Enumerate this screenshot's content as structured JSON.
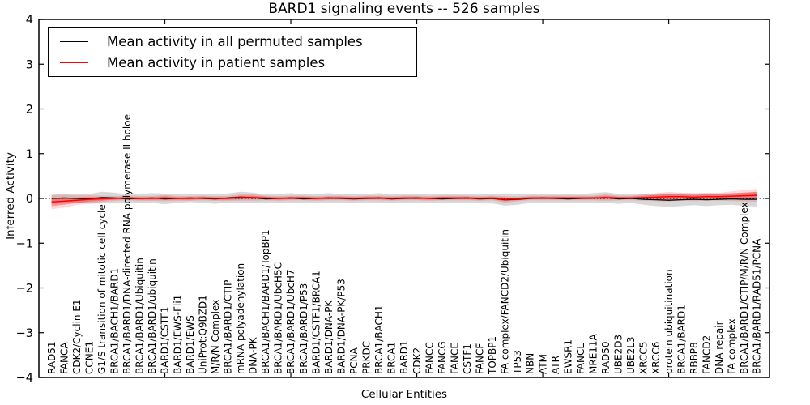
{
  "figure": {
    "title": "BARD1 signaling events -- 526 samples",
    "xlabel": "Cellular Entities",
    "ylabel": "Inferred Activity"
  },
  "legend": {
    "items": [
      {
        "label": "Mean activity in all permuted samples",
        "color": "#000000"
      },
      {
        "label": "Mean activity in patient samples",
        "color": "#ff0000"
      }
    ]
  },
  "chart_data": {
    "type": "line",
    "title": "BARD1 signaling events -- 526 samples",
    "xlabel": "Cellular Entities",
    "ylabel": "Inferred Activity",
    "ylim": [
      -4,
      4
    ],
    "yticks": [
      -4,
      -3,
      -2,
      -1,
      0,
      1,
      2,
      3,
      4
    ],
    "xlim": [
      0,
      58
    ],
    "xticks": [
      10,
      20,
      30,
      40,
      50
    ],
    "grid": false,
    "legend_position": "upper left",
    "zero_line": {
      "y": 0,
      "style": "dotted",
      "color": "#000000"
    },
    "categories": [
      "RAD51",
      "FANCA",
      "CDK2/Cyclin E1",
      "CCNE1",
      "G1/S transition of mitotic cell cycle",
      "BRCA1/BACH1/BARD1",
      "BRCA1/BARD1/DNA-directed RNA polymerase II holoe",
      "BRCA1/BARD1/Ubiquitin",
      "BRCA1/BARD1/ubiquitin",
      "BARD1/CSTF1",
      "BARD1/EWS-Fli1",
      "BARD1/EWS",
      "UniProt:Q9BZD1",
      "M/R/N Complex",
      "BRCA1/BARD1/CTIP",
      "mRNA polyadenylation",
      "DNA-PK",
      "BRCA1/BACH1/BARD1/TopBP1",
      "BRCA1/BARD1/UbcH5C",
      "BRCA1/BARD1/UbcH7",
      "BRCA1/BARD1/P53",
      "BARD1/CSTF1/BRCA1",
      "BARD1/DNA-PK",
      "BARD1/DNA-PK/P53",
      "PCNA",
      "PRKDC",
      "BRCA1/BACH1",
      "BRCA1",
      "BARD1",
      "CDK2",
      "FANCC",
      "FANCG",
      "FANCE",
      "CSTF1",
      "FANCF",
      "TOPBP1",
      "FA complex/FANCD2/Ubiquitin",
      "TP53",
      "NBN",
      "ATM",
      "ATR",
      "EWSR1",
      "FANCL",
      "MRE11A",
      "RAD50",
      "UBE2D3",
      "UBE2L3",
      "XRCC5",
      "XRCC6",
      "protein ubiquitination",
      "BRCA1/BARD1",
      "RBBP8",
      "FANCD2",
      "DNA repair",
      "FA complex",
      "BRCA1/BARD1/CTIP/M/R/N Complex",
      "BRCA1/BARD1/RAD51/PCNA"
    ],
    "series": [
      {
        "name": "Mean activity in all permuted samples",
        "color": "#000000",
        "band_color": "#999999",
        "values": [
          0.0,
          0.01,
          0.0,
          -0.01,
          0.02,
          0.01,
          -0.01,
          0.0,
          0.01,
          -0.01,
          0.0,
          0.01,
          0.0,
          -0.01,
          0.01,
          0.03,
          0.02,
          -0.01,
          0.0,
          0.01,
          -0.01,
          0.0,
          0.01,
          0.0,
          -0.01,
          0.0,
          0.01,
          -0.01,
          0.0,
          0.01,
          0.0,
          -0.01,
          0.0,
          0.01,
          -0.01,
          0.0,
          -0.03,
          -0.02,
          0.0,
          0.01,
          0.0,
          -0.01,
          0.0,
          0.01,
          0.02,
          -0.01,
          0.0,
          -0.02,
          -0.03,
          -0.04,
          -0.03,
          -0.02,
          -0.03,
          -0.02,
          -0.01,
          -0.02,
          -0.02
        ],
        "band": [
          0.08,
          0.09,
          0.1,
          0.11,
          0.13,
          0.12,
          0.1,
          0.1,
          0.11,
          0.12,
          0.1,
          0.09,
          0.1,
          0.11,
          0.1,
          0.12,
          0.11,
          0.1,
          0.1,
          0.11,
          0.1,
          0.1,
          0.11,
          0.1,
          0.1,
          0.1,
          0.11,
          0.1,
          0.1,
          0.1,
          0.1,
          0.1,
          0.1,
          0.1,
          0.1,
          0.11,
          0.13,
          0.12,
          0.1,
          0.1,
          0.1,
          0.1,
          0.1,
          0.11,
          0.12,
          0.11,
          0.1,
          0.12,
          0.14,
          0.15,
          0.14,
          0.13,
          0.14,
          0.13,
          0.13,
          0.15,
          0.16
        ]
      },
      {
        "name": "Mean activity in patient samples",
        "color": "#ff0000",
        "band_color": "#ff0000",
        "values": [
          -0.08,
          -0.06,
          -0.04,
          -0.02,
          -0.01,
          0.0,
          0.01,
          0.0,
          0.0,
          0.01,
          0.0,
          0.0,
          0.01,
          0.0,
          0.0,
          0.02,
          0.02,
          0.01,
          0.0,
          0.01,
          0.01,
          0.0,
          0.01,
          0.01,
          0.0,
          0.01,
          0.01,
          0.0,
          0.01,
          0.01,
          0.0,
          0.01,
          0.01,
          0.01,
          0.0,
          0.01,
          -0.02,
          -0.01,
          0.01,
          0.01,
          0.01,
          0.01,
          0.01,
          0.01,
          0.02,
          0.01,
          0.01,
          0.02,
          0.03,
          0.04,
          0.04,
          0.03,
          0.04,
          0.04,
          0.05,
          0.06,
          0.07
        ],
        "band": [
          0.09,
          0.08,
          0.06,
          0.05,
          0.04,
          0.03,
          0.03,
          0.03,
          0.03,
          0.04,
          0.03,
          0.03,
          0.03,
          0.03,
          0.03,
          0.04,
          0.04,
          0.03,
          0.03,
          0.03,
          0.03,
          0.03,
          0.03,
          0.03,
          0.03,
          0.03,
          0.03,
          0.03,
          0.03,
          0.03,
          0.03,
          0.03,
          0.03,
          0.03,
          0.03,
          0.03,
          0.04,
          0.03,
          0.03,
          0.03,
          0.03,
          0.03,
          0.03,
          0.03,
          0.04,
          0.03,
          0.03,
          0.04,
          0.05,
          0.06,
          0.05,
          0.05,
          0.05,
          0.05,
          0.06,
          0.07,
          0.08
        ]
      }
    ]
  }
}
